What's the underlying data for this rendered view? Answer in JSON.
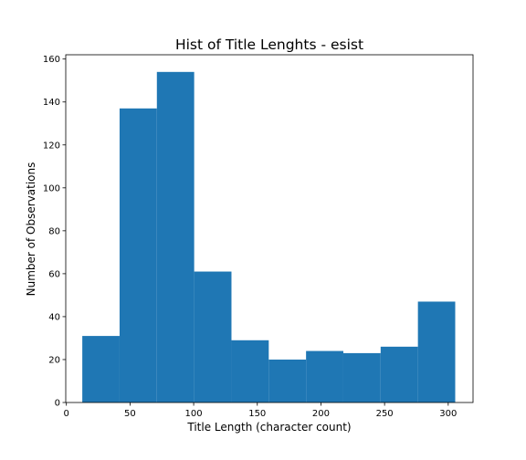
{
  "chart_data": {
    "type": "bar",
    "histogram": true,
    "title": "Hist of Title Lenghts - esist",
    "xlabel": "Title Length (character count)",
    "ylabel": "Number of Observations",
    "xlim": [
      -0.5,
      319.5
    ],
    "ylim": [
      0,
      162
    ],
    "x_ticks": [
      0,
      50,
      100,
      150,
      200,
      250,
      300
    ],
    "y_ticks": [
      0,
      20,
      40,
      60,
      80,
      100,
      120,
      140,
      160
    ],
    "grid": false,
    "bar_color": "#1f77b4",
    "bins": [
      {
        "start": 12.5,
        "end": 41.8,
        "count": 31
      },
      {
        "start": 41.8,
        "end": 71.1,
        "count": 137
      },
      {
        "start": 71.1,
        "end": 100.4,
        "count": 154
      },
      {
        "start": 100.4,
        "end": 129.7,
        "count": 61
      },
      {
        "start": 129.7,
        "end": 159.0,
        "count": 29
      },
      {
        "start": 159.0,
        "end": 188.3,
        "count": 20
      },
      {
        "start": 188.3,
        "end": 217.6,
        "count": 24
      },
      {
        "start": 217.6,
        "end": 246.9,
        "count": 23
      },
      {
        "start": 246.9,
        "end": 276.2,
        "count": 26
      },
      {
        "start": 276.2,
        "end": 305.5,
        "count": 47
      }
    ]
  }
}
